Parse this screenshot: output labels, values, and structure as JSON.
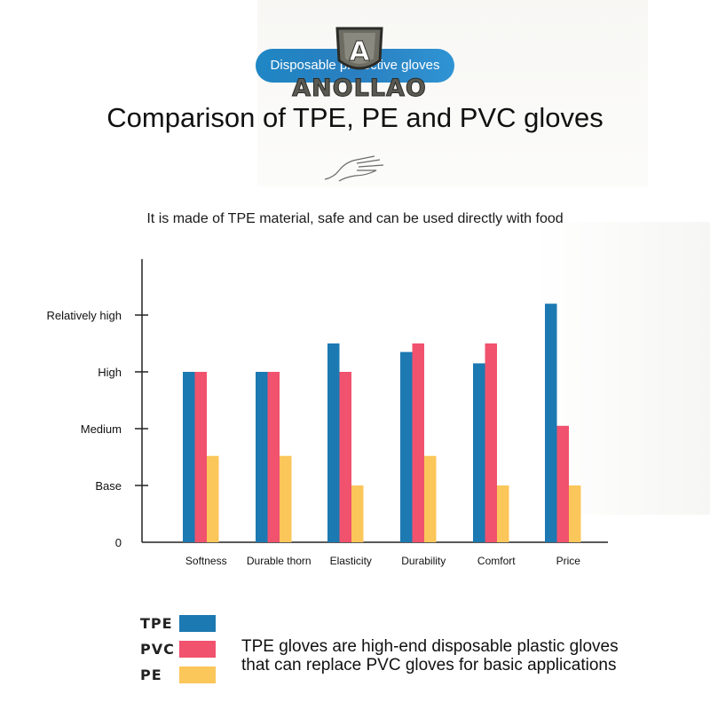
{
  "header": {
    "pill_text": "Disposable protective gloves",
    "brand": "ANOLLAO",
    "logo_letter": "A",
    "title": "Comparison of TPE, PE and PVC gloves",
    "subtitle": "It is made of TPE material, safe and can be used directly with food"
  },
  "chart_data": {
    "type": "bar",
    "categories": [
      "Softness",
      "Durable thorn",
      "Elasticity",
      "Durability",
      "Comfort",
      "Price"
    ],
    "y_ticks": [
      "0",
      "Base",
      "Medium",
      "High",
      "Relatively high"
    ],
    "ylim": [
      0,
      4.4
    ],
    "series": [
      {
        "name": "TPE",
        "color": "#1c79b1",
        "values": [
          3.0,
          3.0,
          3.5,
          3.35,
          3.15,
          4.2
        ]
      },
      {
        "name": "PVC",
        "color": "#f1526e",
        "values": [
          3.0,
          3.0,
          3.0,
          3.5,
          3.5,
          2.05
        ]
      },
      {
        "name": "PE",
        "color": "#fbc65a",
        "values": [
          1.52,
          1.52,
          1.0,
          1.52,
          1.0,
          1.0
        ]
      }
    ],
    "grid": false,
    "legend": "bottom-left"
  },
  "legend_items": [
    {
      "label": "TPE",
      "color": "#1c79b1"
    },
    {
      "label": "PVC",
      "color": "#f1526e"
    },
    {
      "label": "PE",
      "color": "#fbc65a"
    }
  ],
  "note": {
    "line1": "TPE gloves are high-end disposable plastic gloves",
    "line2": "that can replace PVC gloves for basic applications"
  }
}
